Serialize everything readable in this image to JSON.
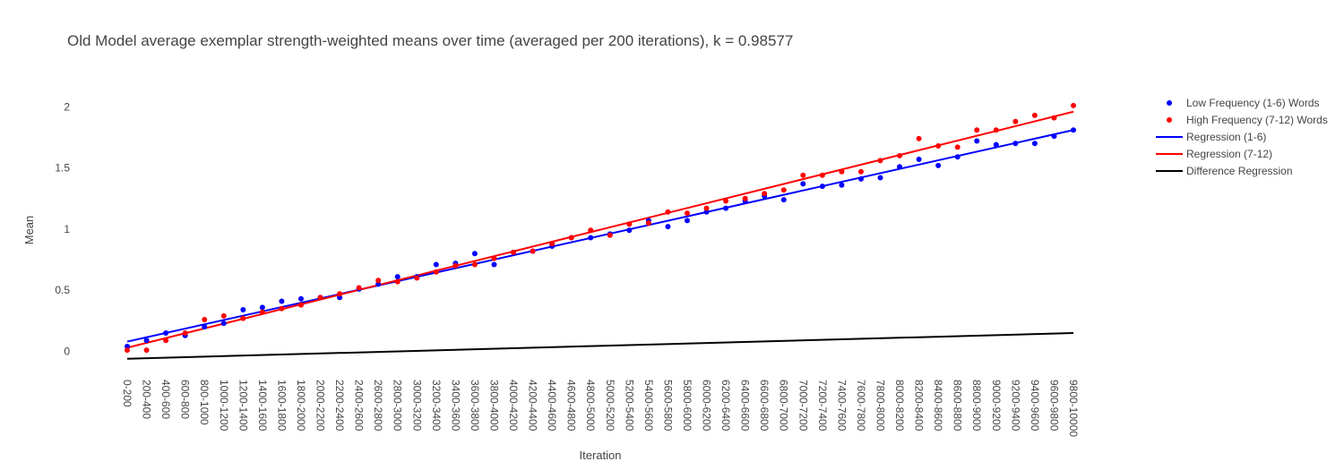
{
  "chart_data": {
    "type": "scatter",
    "title": "Old Model average exemplar strength-weighted means over time (averaged per 200 iterations), k = 0.98577",
    "xlabel": "Iteration",
    "ylabel": "Mean",
    "ylim": [
      -0.1,
      2.2
    ],
    "y_ticks": [
      "0",
      "0.5",
      "1",
      "1.5",
      "2"
    ],
    "grid": false,
    "legend_position": "top-right",
    "categories": [
      "0-200",
      "200-400",
      "400-600",
      "600-800",
      "800-1000",
      "1000-1200",
      "1200-1400",
      "1400-1600",
      "1600-1800",
      "1800-2000",
      "2000-2200",
      "2200-2400",
      "2400-2600",
      "2600-2800",
      "2800-3000",
      "3000-3200",
      "3200-3400",
      "3400-3600",
      "3600-3800",
      "3800-4000",
      "4000-4200",
      "4200-4400",
      "4400-4600",
      "4600-4800",
      "4800-5000",
      "5000-5200",
      "5200-5400",
      "5400-5600",
      "5600-5800",
      "5800-6000",
      "6000-6200",
      "6200-6400",
      "6400-6600",
      "6600-6800",
      "6800-7000",
      "7000-7200",
      "7200-7400",
      "7400-7600",
      "7600-7800",
      "7800-8000",
      "8000-8200",
      "8200-8400",
      "8400-8600",
      "8600-8800",
      "8800-9000",
      "9000-9200",
      "9200-9400",
      "9400-9600",
      "9600-9800",
      "9800-10000"
    ],
    "series": [
      {
        "name": "Low Frequency (1-6) Words",
        "mode": "markers",
        "color": "#0000ff",
        "values": [
          0.04,
          0.09,
          0.15,
          0.13,
          0.2,
          0.23,
          0.34,
          0.36,
          0.41,
          0.43,
          0.44,
          0.44,
          0.51,
          0.55,
          0.61,
          0.61,
          0.71,
          0.72,
          0.8,
          0.71,
          0.81,
          0.82,
          0.86,
          0.93,
          0.93,
          0.96,
          0.99,
          1.07,
          1.02,
          1.07,
          1.14,
          1.17,
          1.23,
          1.27,
          1.24,
          1.37,
          1.35,
          1.36,
          1.41,
          1.42,
          1.51,
          1.57,
          1.52,
          1.59,
          1.72,
          1.69,
          1.7,
          1.7,
          1.76,
          1.81
        ]
      },
      {
        "name": "High Frequency (7-12) Words",
        "mode": "markers",
        "color": "#ff0000",
        "values": [
          0.01,
          0.01,
          0.09,
          0.15,
          0.26,
          0.29,
          0.27,
          0.32,
          0.35,
          0.38,
          0.44,
          0.47,
          0.52,
          0.58,
          0.57,
          0.6,
          0.65,
          0.7,
          0.71,
          0.76,
          0.81,
          0.82,
          0.88,
          0.93,
          0.99,
          0.95,
          1.04,
          1.05,
          1.14,
          1.13,
          1.17,
          1.23,
          1.25,
          1.29,
          1.32,
          1.44,
          1.44,
          1.47,
          1.47,
          1.56,
          1.6,
          1.74,
          1.68,
          1.67,
          1.81,
          1.81,
          1.88,
          1.93,
          1.91,
          2.01
        ]
      },
      {
        "name": "Regression (1-6)",
        "mode": "line",
        "color": "#0000ff",
        "values_start": 0.08,
        "values_end": 1.81
      },
      {
        "name": "Regression (7-12)",
        "mode": "line",
        "color": "#ff0000",
        "values_start": 0.03,
        "values_end": 1.96
      },
      {
        "name": "Difference Regression",
        "mode": "line",
        "color": "#000000",
        "values_start": -0.06,
        "values_end": 0.15
      }
    ]
  }
}
